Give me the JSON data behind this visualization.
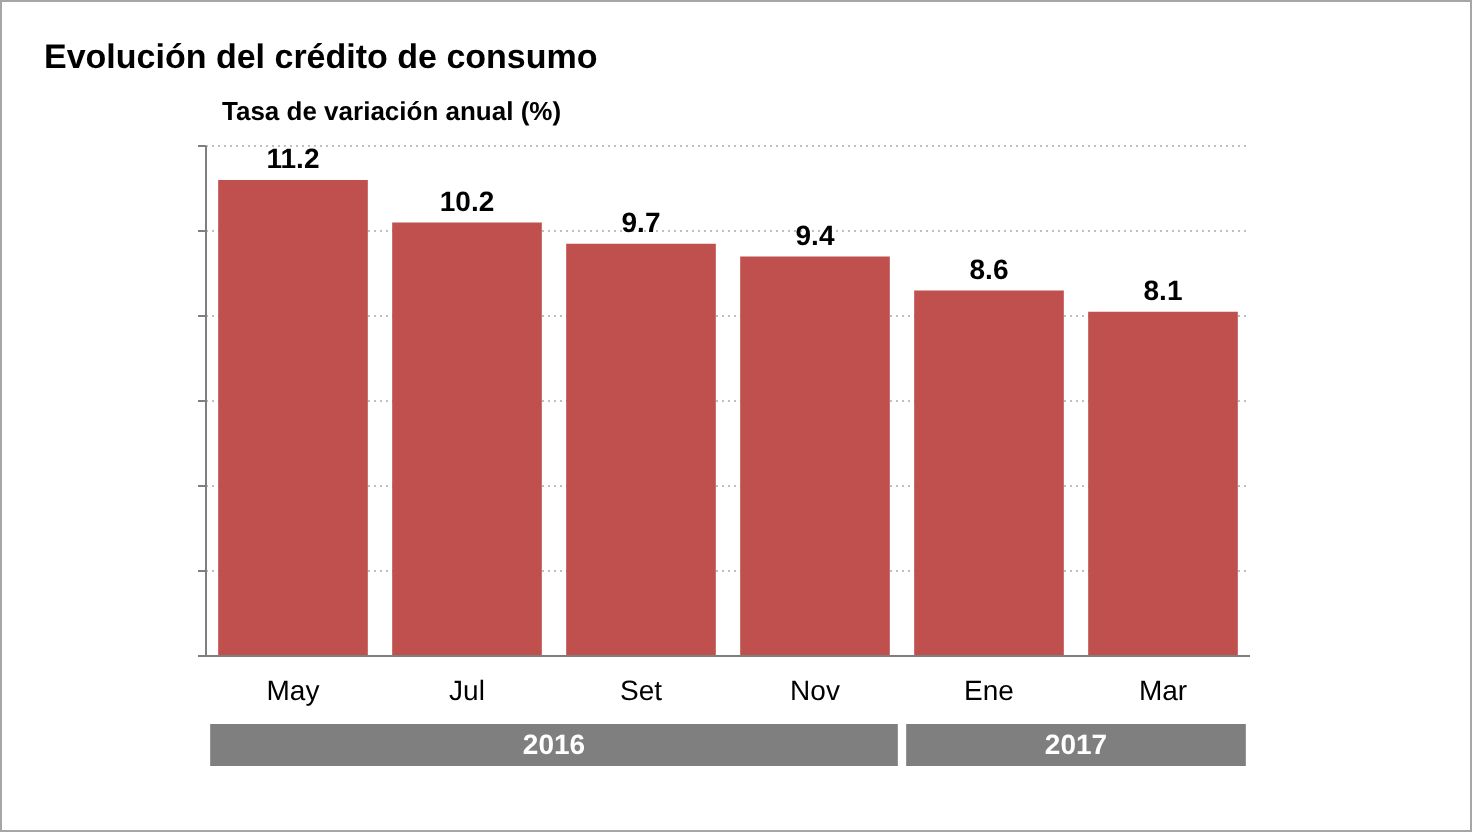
{
  "chart_data": {
    "type": "bar",
    "title": "Evolución del crédito de consumo",
    "subtitle": "Tasa de variación anual (%)",
    "categories": [
      "May",
      "Jul",
      "Set",
      "Nov",
      "Ene",
      "Mar"
    ],
    "values": [
      11.2,
      10.2,
      9.7,
      9.4,
      8.6,
      8.1
    ],
    "color": "#c0504d",
    "ylim": [
      0,
      12
    ],
    "yticks": [
      {
        "value": 0,
        "label": null
      },
      {
        "value": 2,
        "label": null
      },
      {
        "value": 4,
        "label": null
      },
      {
        "value": 6,
        "label": null
      },
      {
        "value": 8,
        "label": null
      },
      {
        "value": 10,
        "label": null
      },
      {
        "value": 12,
        "label": null
      }
    ],
    "tick_labels": "x",
    "grid": "y",
    "data_labels": true,
    "annotations": [
      "2016",
      "2017"
    ]
  }
}
